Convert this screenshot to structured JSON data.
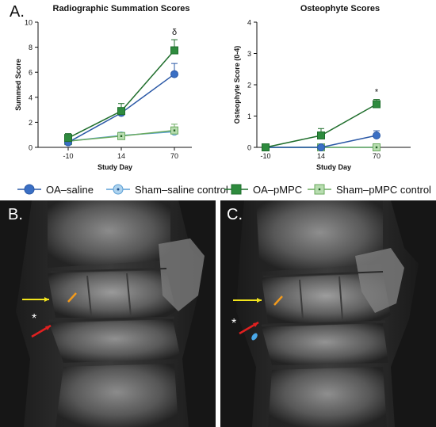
{
  "panel_labels": {
    "a": "A.",
    "b": "B.",
    "c": "C."
  },
  "legend": [
    {
      "label": "OA–saline",
      "marker": "circle",
      "fill": "#3a6fc4",
      "stroke": "#2a58a6",
      "dot": false
    },
    {
      "label": "Sham–saline control",
      "marker": "circle",
      "fill": "#aed3ee",
      "stroke": "#5b9fd6",
      "dot": true
    },
    {
      "label": "OA–pMPC",
      "marker": "square",
      "fill": "#2e8b3e",
      "stroke": "#1f6e2c",
      "dot": false
    },
    {
      "label": "Sham–pMPC control",
      "marker": "square",
      "fill": "#b8ddb0",
      "stroke": "#6aaa5e",
      "dot": true
    }
  ],
  "xray_annotations": {
    "asterisk": "*"
  },
  "chart_data": [
    {
      "type": "line",
      "title": "Radiographic Summation Scores",
      "xlabel": "Study Day",
      "ylabel": "Summed Score",
      "categories": [
        "-10",
        "14",
        "70"
      ],
      "ylim": [
        0,
        10
      ],
      "yticks": [
        "0",
        "2",
        "4",
        "6",
        "8",
        "10"
      ],
      "annotations": [
        {
          "category": "70",
          "text": "δ"
        }
      ],
      "series": [
        {
          "name": "OA–saline",
          "values": [
            0.4,
            2.75,
            5.85
          ],
          "errors": [
            0.25,
            0.3,
            0.85
          ]
        },
        {
          "name": "Sham–saline control",
          "values": [
            0.5,
            0.95,
            1.25
          ],
          "errors": [
            0.25,
            0.25,
            0.25
          ]
        },
        {
          "name": "OA–pMPC",
          "values": [
            0.75,
            2.9,
            7.75
          ],
          "errors": [
            0.35,
            0.6,
            0.85
          ]
        },
        {
          "name": "Sham–pMPC control",
          "values": [
            0.5,
            0.9,
            1.35
          ],
          "errors": [
            0.2,
            0.2,
            0.5
          ]
        }
      ]
    },
    {
      "type": "line",
      "title": "Osteophyte Scores",
      "xlabel": "Study Day",
      "ylabel": "Osteophyte Score (0-4)",
      "categories": [
        "-10",
        "14",
        "70"
      ],
      "ylim": [
        0,
        4
      ],
      "yticks": [
        "0",
        "1",
        "2",
        "3",
        "4"
      ],
      "annotations": [
        {
          "category": "70",
          "text": "*"
        }
      ],
      "series": [
        {
          "name": "OA–saline",
          "values": [
            0,
            0,
            0.38
          ],
          "errors": [
            0,
            0,
            0.15
          ]
        },
        {
          "name": "Sham–saline control",
          "values": [
            0,
            0,
            0
          ],
          "errors": [
            0,
            0,
            0
          ]
        },
        {
          "name": "OA–pMPC",
          "values": [
            0,
            0.38,
            1.38
          ],
          "errors": [
            0,
            0.22,
            0.15
          ]
        },
        {
          "name": "Sham–pMPC control",
          "values": [
            0,
            0,
            0
          ],
          "errors": [
            0,
            0,
            0
          ]
        }
      ]
    }
  ]
}
